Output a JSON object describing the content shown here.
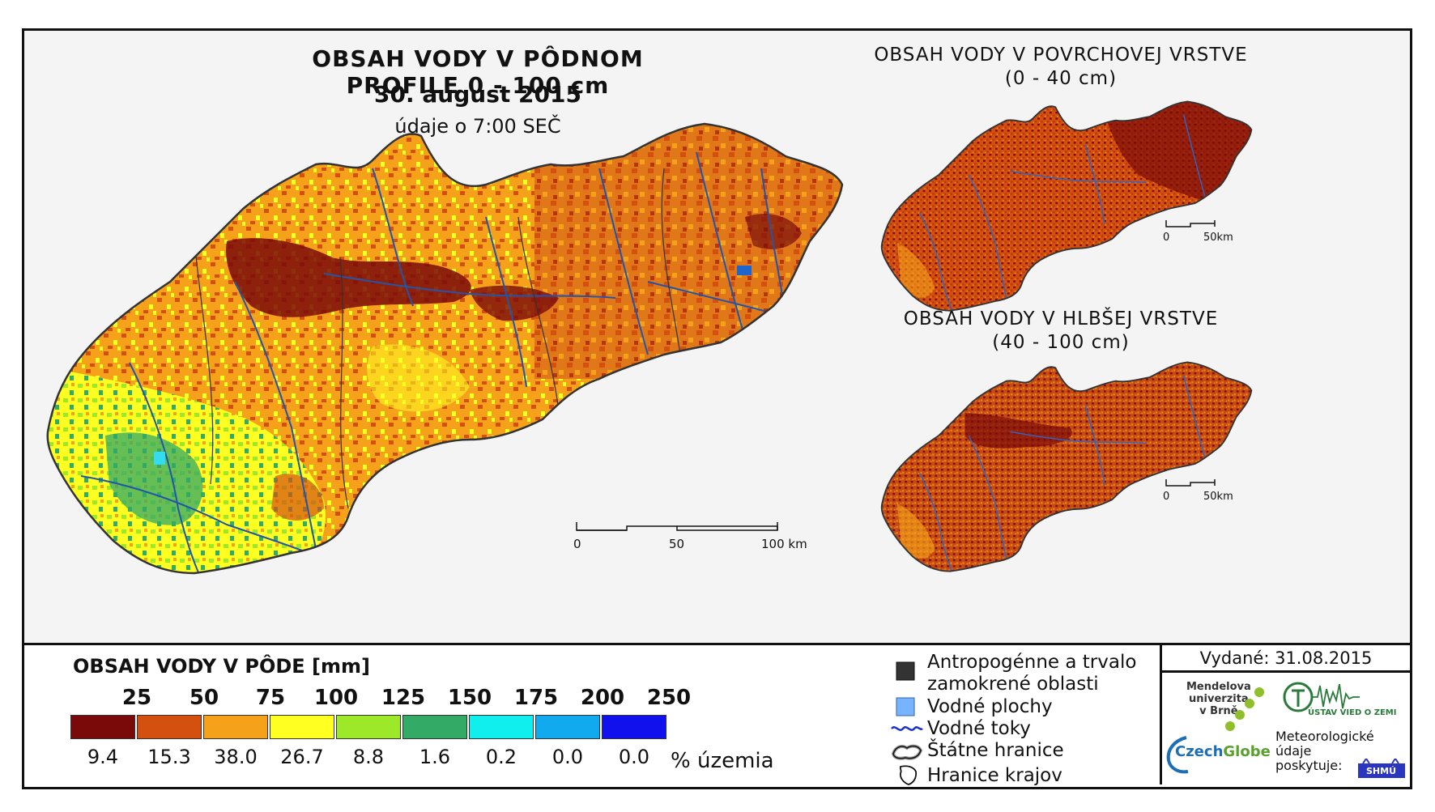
{
  "main_map": {
    "title": "OBSAH VODY V PÔDNOM PROFILE 0 - 100 cm",
    "date": "30. august 2015",
    "time_note": "údaje o 7:00 SEČ",
    "scale_labels": [
      "0",
      "50",
      "100 km"
    ]
  },
  "surface_map": {
    "title_line1": "OBSAH VODY V POVRCHOVEJ VRSTVE",
    "title_line2": "(0 - 40 cm)",
    "scale_labels": [
      "0",
      "50km"
    ]
  },
  "deep_map": {
    "title_line1": "OBSAH VODY V HLBŠEJ VRSTVE",
    "title_line2": "(40 - 100 cm)",
    "scale_labels": [
      "0",
      "50km"
    ]
  },
  "legend": {
    "title": "OBSAH VODY V PÔDE [mm]",
    "class_bounds": [
      "25",
      "50",
      "75",
      "100",
      "125",
      "150",
      "175",
      "200",
      "250"
    ],
    "classes": [
      {
        "color": "#7a0a0a",
        "percent": "9.4"
      },
      {
        "color": "#d4500f",
        "percent": "15.3"
      },
      {
        "color": "#f5a21a",
        "percent": "38.0"
      },
      {
        "color": "#ffff22",
        "percent": "26.7"
      },
      {
        "color": "#9ee82a",
        "percent": "8.8"
      },
      {
        "color": "#33aa66",
        "percent": "1.6"
      },
      {
        "color": "#11eeee",
        "percent": "0.2"
      },
      {
        "color": "#11aaee",
        "percent": "0.0"
      },
      {
        "color": "#1111ee",
        "percent": "0.0"
      }
    ],
    "percent_unit": "% územia"
  },
  "symbols": {
    "anthropogenic_line1": "Antropogénne a trvalo",
    "anthropogenic_line2": "zamokrené oblasti",
    "water_bodies": "Vodné plochy",
    "rivers": "Vodné toky",
    "state_border": "Štátne hranice",
    "region_border": "Hranice krajov"
  },
  "issued": "Vydané: 31.08.2015",
  "logos": {
    "mendel_line1": "Mendelova",
    "mendel_line2": "univerzita",
    "mendel_line3": "v Brně",
    "czechglobe_a": "Czech",
    "czechglobe_b": "Globe",
    "uvgz": "ÚSTAV VIED O ZEMI",
    "meteo_line1": "Meteorologické",
    "meteo_line2": "údaje",
    "meteo_line3": "poskytuje:",
    "shmu": "SHMÚ"
  }
}
